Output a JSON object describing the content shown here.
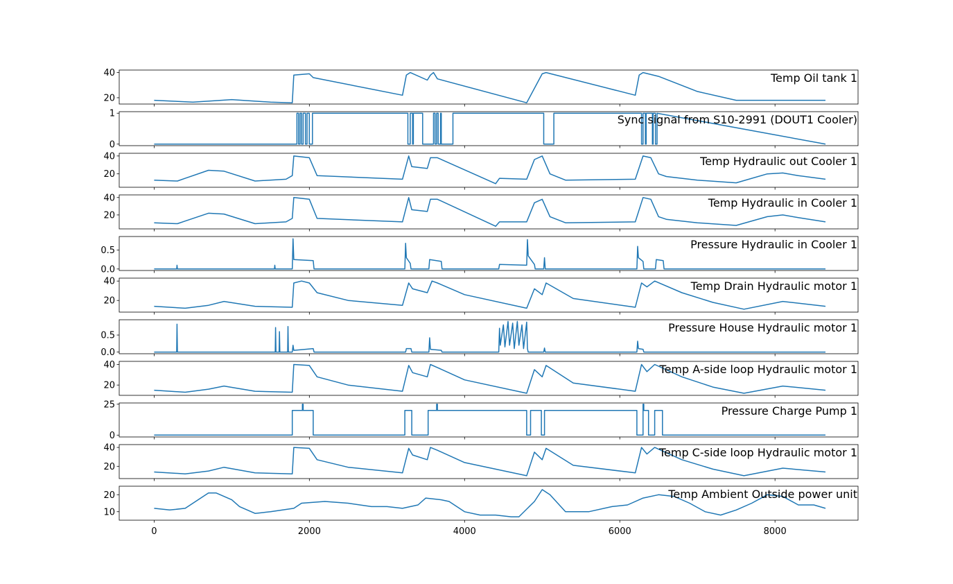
{
  "chart_data": {
    "type": "line",
    "line_color": "#1f77b4",
    "shared_x_axis": {
      "range": [
        -450,
        9070
      ],
      "ticks": [
        0,
        2000,
        4000,
        6000,
        8000
      ],
      "tick_labels": [
        "0",
        "2000",
        "4000",
        "6000",
        "8000"
      ],
      "x_max_data": 8650
    },
    "legend_placement": "top-right label inside each panel",
    "grid": false,
    "panels": [
      {
        "title": "Temp Oil tank 1",
        "ylim": [
          15,
          42
        ],
        "yticks": [
          20,
          40
        ],
        "ytick_labels": [
          "20",
          "40"
        ],
        "series": {
          "x": [
            0,
            500,
            1000,
            1500,
            1780,
            1800,
            2000,
            2050,
            3200,
            3250,
            3300,
            3520,
            3560,
            3600,
            3650,
            4800,
            5000,
            5050,
            6200,
            6250,
            6300,
            6500,
            7000,
            7500,
            8650
          ],
          "y": [
            18,
            16.5,
            18.5,
            16.5,
            16,
            38,
            39,
            36,
            22,
            38,
            40,
            34,
            38,
            40,
            35,
            16,
            39,
            40,
            22,
            38,
            40,
            37,
            25,
            18,
            18
          ]
        }
      },
      {
        "title": "Sync signal from S10-2991 (DOUT1 Cooler)",
        "ylim": [
          -0.05,
          1.05
        ],
        "yticks": [
          0,
          1
        ],
        "ytick_labels": [
          "0",
          "1"
        ],
        "series": {
          "x": [
            0,
            1840,
            1840,
            1860,
            1860,
            1880,
            1880,
            1900,
            1900,
            1920,
            1920,
            1950,
            1950,
            1970,
            1970,
            2000,
            2000,
            2040,
            2040,
            3270,
            3270,
            3300,
            3300,
            3330,
            3330,
            3340,
            3340,
            3460,
            3460,
            3600,
            3600,
            3620,
            3620,
            3640,
            3640,
            3660,
            3660,
            3690,
            3690,
            3700,
            3700,
            3850,
            3850,
            5020,
            5020,
            5150,
            5150,
            6280,
            6280,
            6300,
            6300,
            6330,
            6330,
            6340,
            6340,
            6420,
            6420,
            6430,
            6430,
            6460,
            6460,
            6480,
            6480,
            8650
          ],
          "y": [
            0,
            0,
            1,
            1,
            0,
            0,
            1,
            1,
            0,
            0,
            1,
            1,
            0,
            0,
            1,
            1,
            0,
            0,
            1,
            1,
            0,
            0,
            1,
            1,
            0,
            0,
            1,
            1,
            0,
            0,
            1,
            1,
            0,
            0,
            1,
            1,
            0,
            0,
            1,
            1,
            0,
            0,
            1,
            1,
            0,
            0,
            1,
            1,
            0,
            0,
            1,
            1,
            0,
            0,
            1,
            1,
            0,
            0,
            1,
            1,
            0,
            0,
            1,
            0
          ]
        }
      },
      {
        "title": "Temp Hydraulic out Cooler 1",
        "ylim": [
          5,
          43
        ],
        "yticks": [
          20,
          40
        ],
        "ytick_labels": [
          "20",
          "40"
        ],
        "series": {
          "x": [
            0,
            300,
            400,
            700,
            900,
            1300,
            1700,
            1780,
            1800,
            2000,
            2100,
            3200,
            3280,
            3320,
            3520,
            3560,
            3650,
            4400,
            4450,
            4800,
            4900,
            5000,
            5100,
            5300,
            6200,
            6300,
            6400,
            6500,
            6600,
            7000,
            7500,
            7900,
            8100,
            8300,
            8650
          ],
          "y": [
            13,
            12,
            15,
            24,
            23,
            12,
            14,
            18,
            40,
            38,
            18,
            14,
            40,
            28,
            26,
            38,
            38,
            9,
            15,
            14,
            36,
            40,
            20,
            13,
            14,
            40,
            38,
            20,
            17,
            13,
            10,
            20,
            21,
            18,
            14
          ]
        }
      },
      {
        "title": "Temp Hydraulic in Cooler 1",
        "ylim": [
          4,
          43
        ],
        "yticks": [
          20,
          40
        ],
        "ytick_labels": [
          "20",
          "40"
        ],
        "series": {
          "x": [
            0,
            300,
            400,
            700,
            900,
            1300,
            1700,
            1780,
            1800,
            2000,
            2100,
            3200,
            3280,
            3320,
            3520,
            3560,
            3650,
            4400,
            4450,
            4800,
            4900,
            5000,
            5100,
            5300,
            6200,
            6300,
            6400,
            6500,
            6600,
            7000,
            7500,
            7900,
            8100,
            8300,
            8650
          ],
          "y": [
            11,
            10,
            13,
            22,
            21,
            10,
            12,
            16,
            40,
            38,
            16,
            12,
            40,
            26,
            24,
            38,
            38,
            7,
            12,
            12,
            34,
            38,
            18,
            11,
            12,
            40,
            38,
            18,
            15,
            11,
            8,
            18,
            20,
            17,
            12
          ]
        }
      },
      {
        "title": "Pressure Hydraulic in Cooler 1",
        "ylim": [
          -0.04,
          0.86
        ],
        "yticks": [
          0.0,
          0.5
        ],
        "ytick_labels": [
          "0.0",
          "0.5"
        ],
        "series": {
          "x": [
            0,
            290,
            295,
            300,
            1550,
            1555,
            1560,
            1780,
            1790,
            1800,
            2050,
            2060,
            3230,
            3240,
            3250,
            3300,
            3310,
            3540,
            3550,
            3700,
            3710,
            4440,
            4450,
            4800,
            4810,
            4820,
            4900,
            4910,
            5020,
            5030,
            5040,
            6220,
            6230,
            6240,
            6300,
            6310,
            6460,
            6470,
            6560,
            6570,
            8650
          ],
          "y": [
            0,
            0,
            0.1,
            0,
            0,
            0.1,
            0,
            0,
            0.8,
            0.25,
            0.22,
            0,
            0,
            0.68,
            0.3,
            0.15,
            0,
            0,
            0.25,
            0.2,
            0,
            0,
            0.12,
            0.1,
            0.78,
            0.35,
            0.12,
            0,
            0,
            0.3,
            0,
            0,
            0.6,
            0.3,
            0.2,
            0,
            0,
            0.25,
            0.22,
            0,
            0
          ]
        }
      },
      {
        "title": "Temp Drain Hydraulic motor 1",
        "ylim": [
          8,
          43
        ],
        "yticks": [
          20,
          40
        ],
        "ytick_labels": [
          "20",
          "40"
        ],
        "series": {
          "x": [
            0,
            400,
            700,
            900,
            1300,
            1780,
            1800,
            1900,
            2000,
            2100,
            2500,
            3200,
            3280,
            3330,
            3520,
            3580,
            3650,
            4000,
            4800,
            4900,
            5000,
            5050,
            5400,
            6200,
            6280,
            6350,
            6450,
            6800,
            7200,
            7600,
            8100,
            8650
          ],
          "y": [
            14,
            12,
            15,
            19,
            14,
            13,
            38,
            40,
            38,
            28,
            20,
            15,
            38,
            32,
            28,
            40,
            38,
            26,
            12,
            32,
            26,
            38,
            22,
            13,
            38,
            34,
            40,
            28,
            18,
            11,
            19,
            14
          ]
        }
      },
      {
        "title": "Pressure House Hydraulic motor 1",
        "ylim": [
          -0.05,
          0.95
        ],
        "yticks": [
          0.0,
          0.5
        ],
        "ytick_labels": [
          "0.0",
          "0.5"
        ],
        "series": {
          "x": [
            0,
            290,
            295,
            300,
            1560,
            1565,
            1570,
            1610,
            1615,
            1620,
            1720,
            1725,
            1730,
            1780,
            1790,
            1800,
            2050,
            2060,
            3240,
            3250,
            3310,
            3320,
            3540,
            3550,
            3560,
            3700,
            3710,
            4440,
            4450,
            4460,
            4500,
            4520,
            4560,
            4580,
            4620,
            4640,
            4680,
            4700,
            4740,
            4760,
            4800,
            4810,
            4820,
            5020,
            5030,
            5040,
            6220,
            6230,
            6240,
            6300,
            6310,
            8650
          ],
          "y": [
            0,
            0,
            0.82,
            0,
            0,
            0.72,
            0,
            0,
            0.6,
            0,
            0,
            0.75,
            0,
            0,
            0.2,
            0.05,
            0.1,
            0,
            0,
            0.1,
            0.1,
            0,
            0,
            0.42,
            0.08,
            0.05,
            0,
            0,
            0.7,
            0.2,
            0.8,
            0.15,
            0.9,
            0.2,
            0.85,
            0.1,
            0.9,
            0.2,
            0.8,
            0.1,
            0.88,
            0.1,
            0,
            0,
            0.12,
            0,
            0,
            0.32,
            0.1,
            0.08,
            0,
            0
          ]
        }
      },
      {
        "title": "Temp A-side loop Hydraulic motor 1",
        "ylim": [
          10,
          43
        ],
        "yticks": [
          20,
          40
        ],
        "ytick_labels": [
          "20",
          "40"
        ],
        "series": {
          "x": [
            0,
            400,
            700,
            900,
            1300,
            1780,
            1800,
            2000,
            2100,
            2500,
            3200,
            3280,
            3330,
            3520,
            3560,
            3650,
            4000,
            4800,
            4900,
            5000,
            5050,
            5400,
            6200,
            6280,
            6350,
            6450,
            6800,
            7200,
            7600,
            8100,
            8650
          ],
          "y": [
            15,
            13,
            16,
            19,
            14,
            13,
            40,
            39,
            28,
            20,
            14,
            39,
            32,
            28,
            40,
            37,
            25,
            12,
            35,
            28,
            39,
            22,
            14,
            40,
            33,
            40,
            28,
            18,
            12,
            19,
            15
          ]
        }
      },
      {
        "title": "Pressure Charge Pump 1",
        "ylim": [
          -1.5,
          26
        ],
        "yticks": [
          0,
          25
        ],
        "ytick_labels": [
          "0",
          "25"
        ],
        "series": {
          "x": [
            0,
            1780,
            1780,
            1910,
            1910,
            1920,
            1920,
            2050,
            2050,
            3230,
            3230,
            3320,
            3320,
            3530,
            3530,
            3640,
            3640,
            3650,
            3650,
            4800,
            4800,
            4850,
            4850,
            4990,
            4990,
            5030,
            5030,
            6220,
            6220,
            6300,
            6300,
            6310,
            6310,
            6370,
            6370,
            6450,
            6450,
            6550,
            6550,
            8650
          ],
          "y": [
            0,
            0,
            20,
            20,
            25,
            25,
            20,
            20,
            0,
            0,
            20,
            20,
            0,
            0,
            20,
            20,
            25,
            25,
            20,
            20,
            0,
            0,
            20,
            20,
            0,
            0,
            20,
            20,
            0,
            0,
            25,
            25,
            20,
            20,
            0,
            0,
            20,
            20,
            0,
            0
          ]
        }
      },
      {
        "title": "Temp C-side loop Hydraulic motor 1",
        "ylim": [
          7,
          43
        ],
        "yticks": [
          20,
          40
        ],
        "ytick_labels": [
          "20",
          "40"
        ],
        "series": {
          "x": [
            0,
            400,
            700,
            900,
            1300,
            1780,
            1800,
            2000,
            2100,
            2500,
            3200,
            3280,
            3330,
            3520,
            3560,
            3650,
            4000,
            4800,
            4900,
            5000,
            5050,
            5400,
            6200,
            6280,
            6350,
            6450,
            6800,
            7200,
            7600,
            8100,
            8650
          ],
          "y": [
            14,
            12,
            15,
            19,
            13,
            12,
            40,
            39,
            27,
            19,
            13,
            39,
            32,
            27,
            40,
            37,
            24,
            10,
            35,
            27,
            39,
            21,
            13,
            40,
            33,
            40,
            27,
            17,
            10,
            18,
            14
          ]
        }
      },
      {
        "title": "Temp Ambient Outside power unit",
        "ylim": [
          5,
          25
        ],
        "yticks": [
          10,
          20
        ],
        "ytick_labels": [
          "10",
          "20"
        ],
        "series": {
          "x": [
            0,
            200,
            400,
            600,
            700,
            800,
            1000,
            1100,
            1300,
            1500,
            1800,
            1900,
            2200,
            2500,
            2800,
            3000,
            3200,
            3400,
            3500,
            3700,
            3800,
            4000,
            4200,
            4400,
            4600,
            4700,
            4900,
            5000,
            5100,
            5300,
            5600,
            5900,
            6100,
            6300,
            6500,
            6700,
            6900,
            7100,
            7300,
            7500,
            7700,
            7900,
            8100,
            8300,
            8500,
            8650
          ],
          "y": [
            12,
            11,
            12,
            18,
            21,
            21,
            17,
            13,
            9,
            10,
            12,
            15,
            16,
            15,
            13,
            13,
            12,
            14,
            18,
            17,
            16,
            10,
            8,
            8,
            7,
            7,
            16,
            23,
            20,
            10,
            10,
            13,
            14,
            18,
            20,
            19,
            15,
            10,
            8,
            11,
            15,
            20,
            19,
            14,
            14,
            12
          ]
        }
      }
    ]
  }
}
